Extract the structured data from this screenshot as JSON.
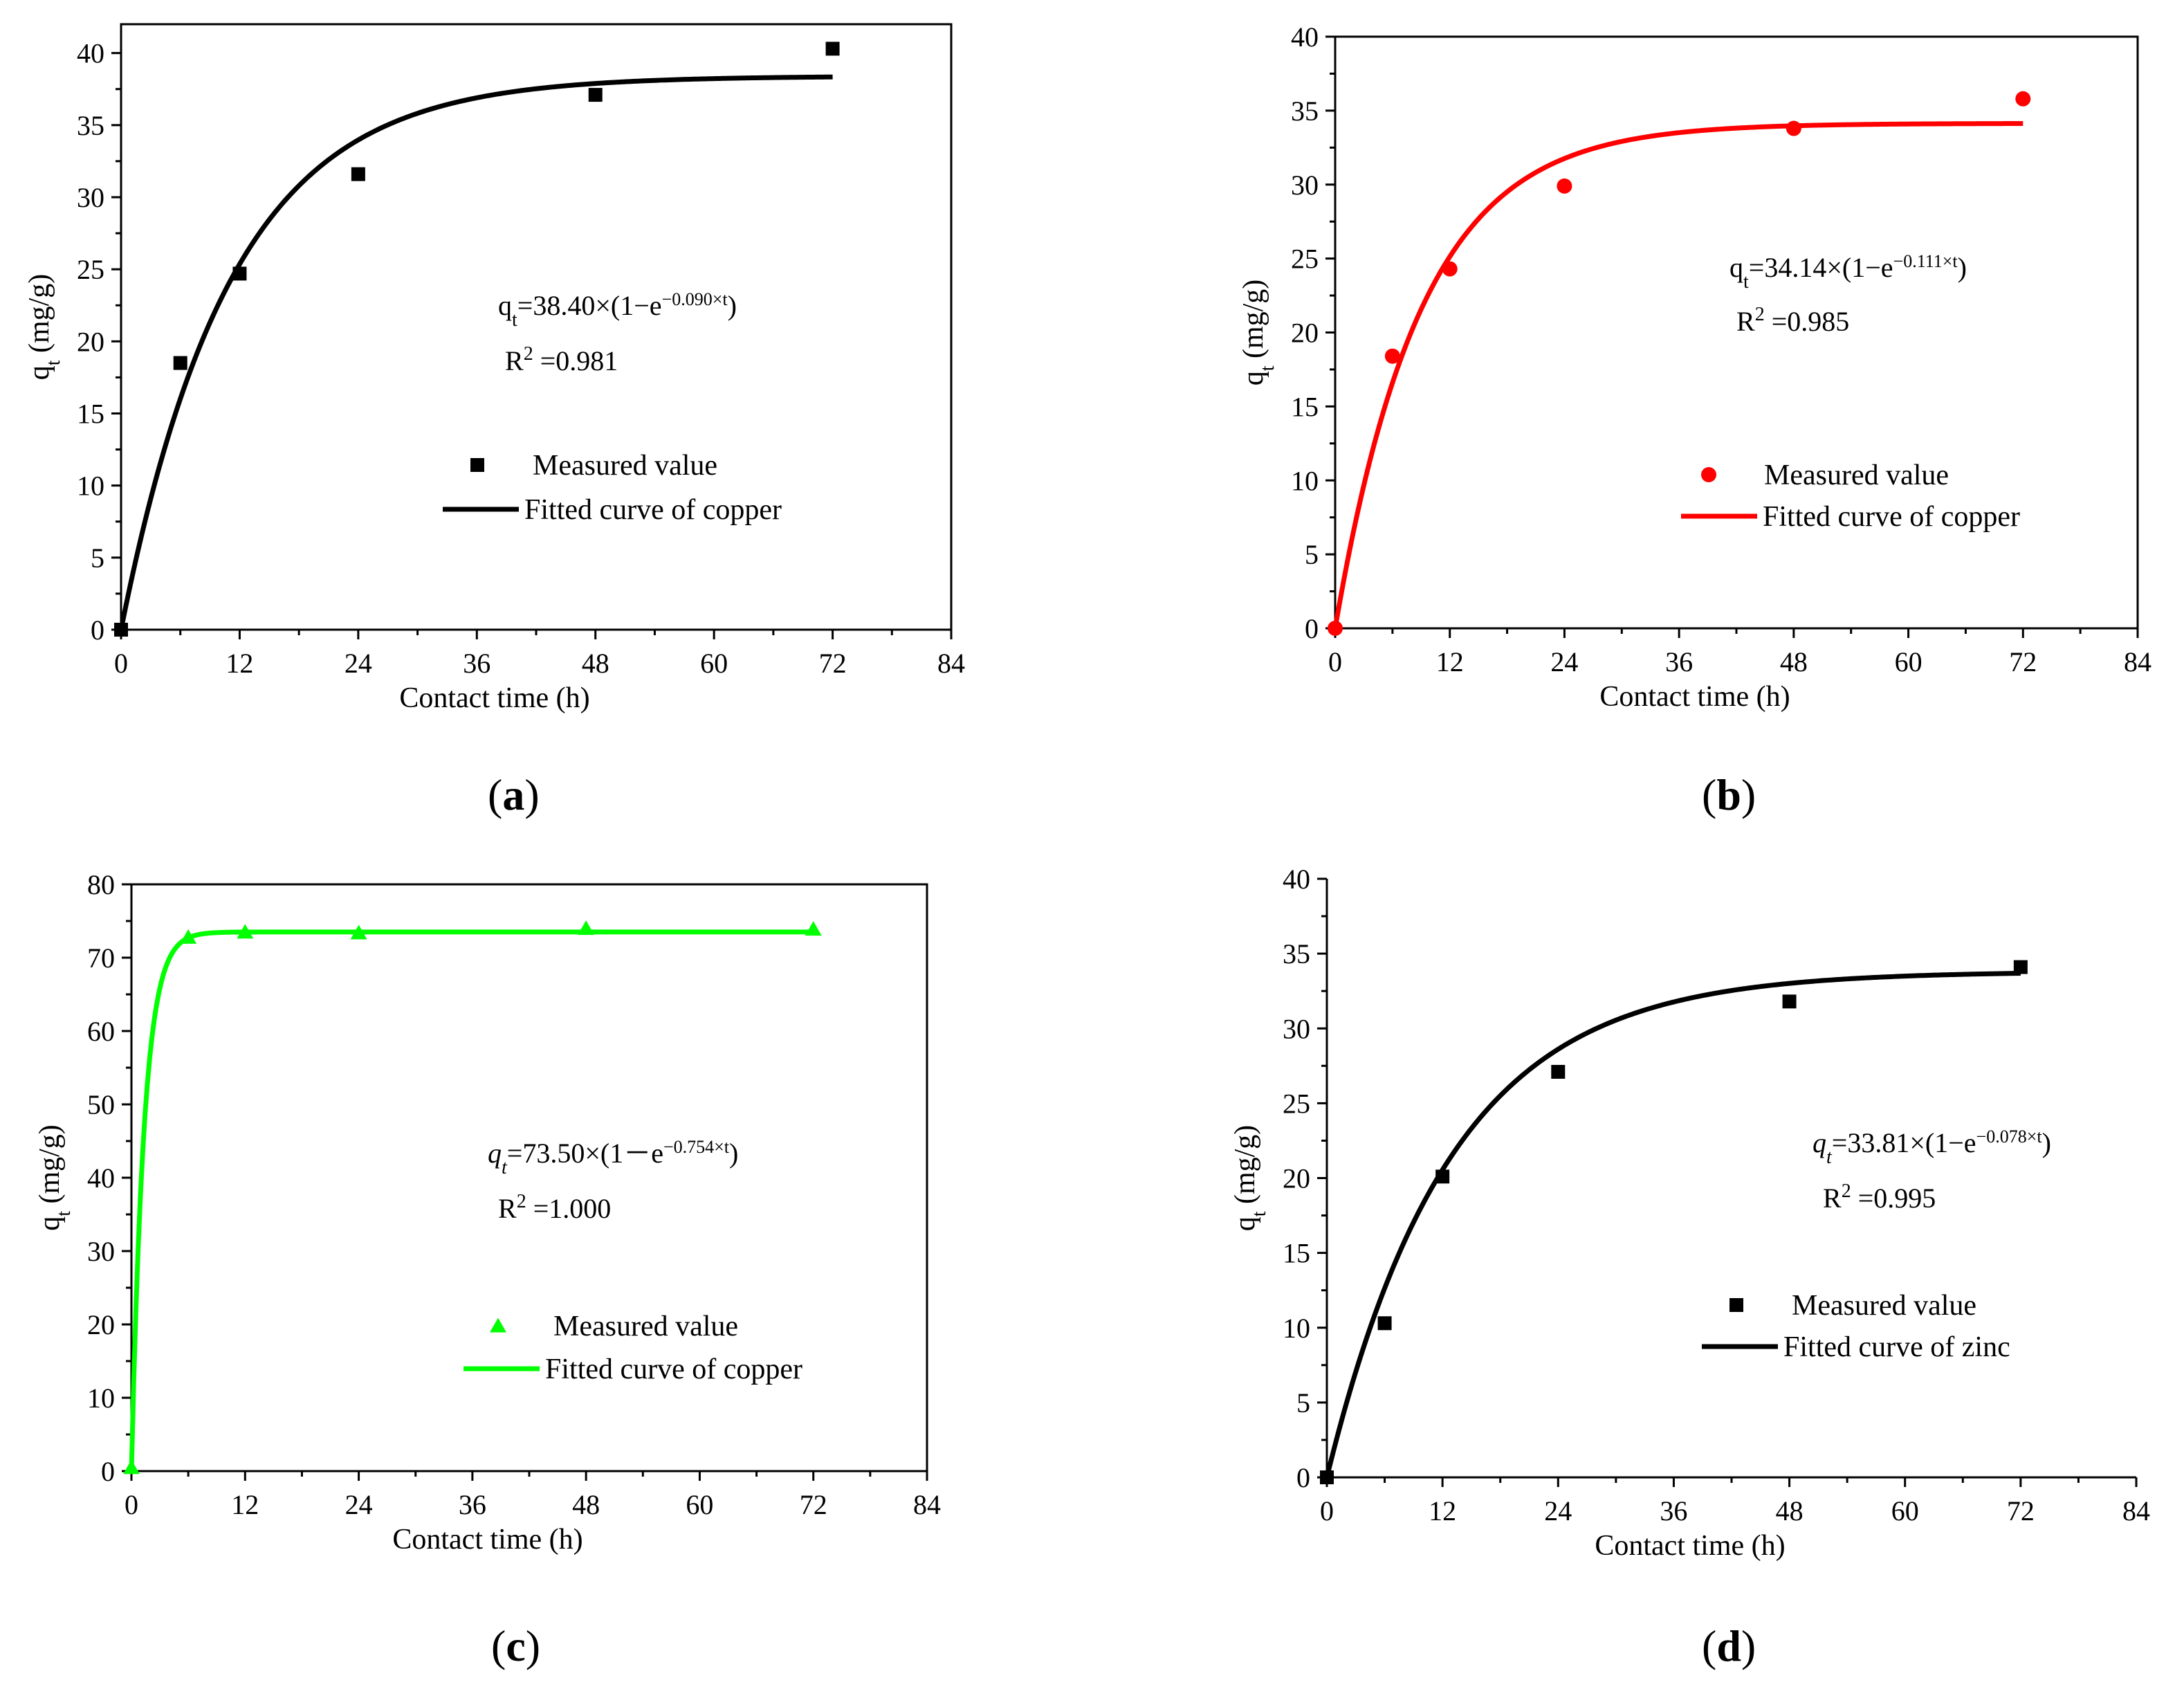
{
  "figure": {
    "common_x_label": "Contact time (h)",
    "legend_measured": "Measured value"
  },
  "chart_data": [
    {
      "type": "scatter",
      "panel": "a",
      "panel_label": "a",
      "color": "#000000",
      "marker": "square",
      "title": "",
      "xlabel": "Contact time (h)",
      "ylabel": "qt (mg/g)",
      "ylabel_main": "q",
      "ylabel_sub": "t",
      "ylabel_rest": " (mg/g)",
      "xlim": [
        0,
        84
      ],
      "ylim": [
        0,
        42
      ],
      "xticks": [
        0,
        12,
        24,
        36,
        48,
        60,
        72,
        84
      ],
      "yticks": [
        0,
        5,
        10,
        15,
        20,
        25,
        30,
        35,
        40
      ],
      "measured": {
        "name": "Measured value",
        "x": [
          0,
          6,
          12,
          24,
          48,
          72
        ],
        "y": [
          0,
          18.5,
          24.7,
          31.6,
          37.1,
          40.3
        ]
      },
      "fit": {
        "name": "Fitted curve of copper",
        "qe": 38.4,
        "k": 0.09,
        "x_max": 72
      },
      "equation": {
        "lhs": "q",
        "lhs_sub": "t",
        "body": "=38.40×(1−e",
        "exponent": "−0.090×t",
        "tail": ")",
        "italic_lhs": false
      },
      "r2": {
        "label": "R",
        "sup": "2",
        "value": " =0.981"
      }
    },
    {
      "type": "scatter",
      "panel": "b",
      "panel_label": "b",
      "color": "#ff0000",
      "marker": "circle",
      "title": "",
      "xlabel": "Contact time (h)",
      "ylabel": "qt (mg/g)",
      "ylabel_main": "q",
      "ylabel_sub": "t",
      "ylabel_rest": " (mg/g)",
      "xlim": [
        0,
        84
      ],
      "ylim": [
        0,
        40
      ],
      "xticks": [
        0,
        12,
        24,
        36,
        48,
        60,
        72,
        84
      ],
      "yticks": [
        0,
        5,
        10,
        15,
        20,
        25,
        30,
        35,
        40
      ],
      "measured": {
        "name": "Measured value",
        "x": [
          0,
          6,
          12,
          24,
          48,
          72
        ],
        "y": [
          0,
          18.4,
          24.3,
          29.9,
          33.8,
          35.8
        ]
      },
      "fit": {
        "name": "Fitted curve of copper",
        "qe": 34.14,
        "k": 0.111,
        "x_max": 72
      },
      "equation": {
        "lhs": "q",
        "lhs_sub": "t",
        "body": "=34.14×(1−e",
        "exponent": "−0.111×t",
        "tail": ")",
        "italic_lhs": false
      },
      "r2": {
        "label": "R",
        "sup": "2",
        "value": " =0.985"
      }
    },
    {
      "type": "scatter",
      "panel": "c",
      "panel_label": "c",
      "color": "#00ff00",
      "marker": "triangle",
      "title": "",
      "xlabel": "Contact time (h)",
      "ylabel": "qt (mg/g)",
      "ylabel_main": "q",
      "ylabel_sub": "t",
      "ylabel_rest": " (mg/g)",
      "xlim": [
        0,
        84
      ],
      "ylim": [
        0,
        80
      ],
      "xticks": [
        0,
        12,
        24,
        36,
        48,
        60,
        72,
        84
      ],
      "yticks": [
        0,
        10,
        20,
        30,
        40,
        50,
        60,
        70,
        80
      ],
      "measured": {
        "name": "Measured value",
        "x": [
          0,
          6,
          12,
          24,
          48,
          72
        ],
        "y": [
          0.5,
          72.8,
          73.5,
          73.4,
          74.0,
          73.9
        ]
      },
      "fit": {
        "name": "Fitted curve of copper",
        "qe": 73.5,
        "k": 0.754,
        "x_max": 72
      },
      "equation": {
        "lhs": "q",
        "lhs_sub": "t",
        "body": "=73.50×(1－e",
        "exponent": "−0.754×t",
        "tail": ")",
        "italic_lhs": true
      },
      "r2": {
        "label": "R",
        "sup": "2",
        "value": " =1.000"
      }
    },
    {
      "type": "scatter",
      "panel": "d",
      "panel_label": "d",
      "color": "#000000",
      "marker": "square",
      "title": "",
      "xlabel": "Contact time (h)",
      "ylabel": "qt (mg/g)",
      "ylabel_main": "q",
      "ylabel_sub": "t",
      "ylabel_rest": " (mg/g)",
      "xlim": [
        0,
        84
      ],
      "ylim": [
        0,
        40
      ],
      "xticks": [
        0,
        12,
        24,
        36,
        48,
        60,
        72,
        84
      ],
      "yticks": [
        0,
        5,
        10,
        15,
        20,
        25,
        30,
        35,
        40
      ],
      "measured": {
        "name": "Measured value",
        "x": [
          0,
          6,
          12,
          24,
          48,
          72
        ],
        "y": [
          0,
          10.3,
          20.1,
          27.1,
          31.8,
          34.1
        ]
      },
      "fit": {
        "name": "Fitted curve of zinc",
        "qe": 33.81,
        "k": 0.078,
        "x_max": 72
      },
      "equation": {
        "lhs": "q",
        "lhs_sub": "t",
        "body": "=33.81×(1−e",
        "exponent": "−0.078×t",
        "tail": ")",
        "italic_lhs": true
      },
      "r2": {
        "label": "R",
        "sup": "2",
        "value": " =0.995"
      }
    }
  ]
}
